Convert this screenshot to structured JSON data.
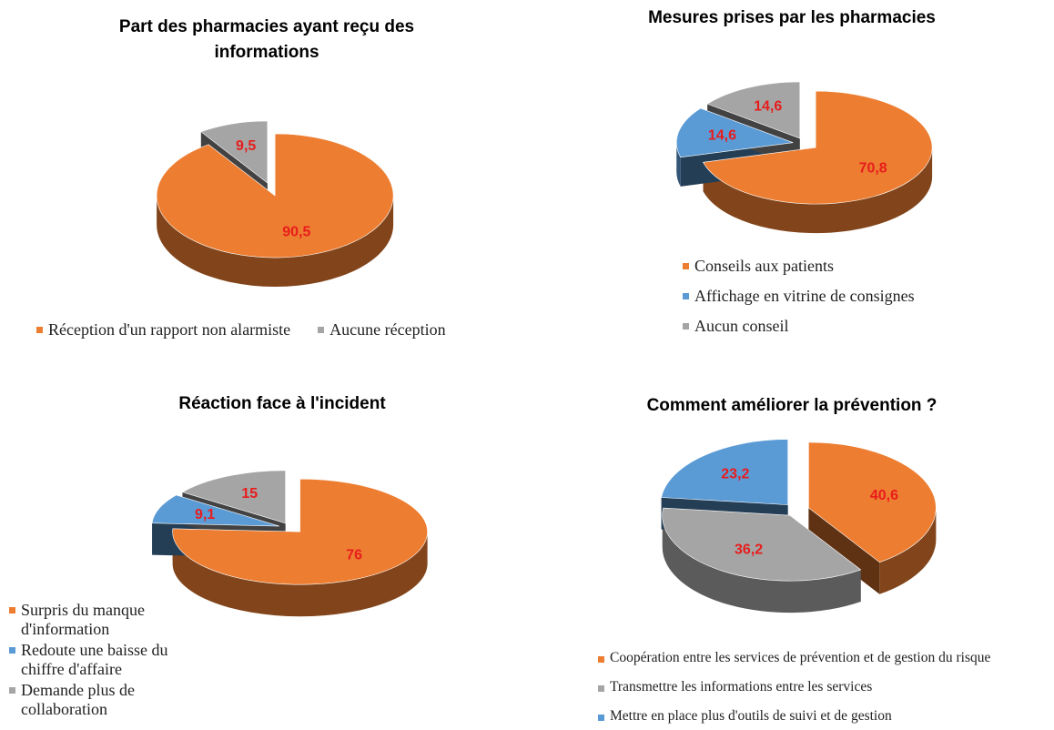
{
  "chart_data": [
    {
      "type": "pie",
      "title": "Part des pharmacies ayant reçu des informations",
      "categories": [
        "Réception d'un rapport non alarmiste",
        "Aucune réception"
      ],
      "values": [
        90.5,
        9.5
      ],
      "value_labels": [
        "90,5",
        "9,5"
      ],
      "colors": [
        "#ed7d31",
        "#a5a5a5"
      ]
    },
    {
      "type": "pie",
      "title": "Mesures prises par les pharmacies",
      "categories": [
        "Conseils aux patients",
        "Affichage en vitrine de consignes",
        "Aucun conseil"
      ],
      "values": [
        70.8,
        14.6,
        14.6
      ],
      "value_labels": [
        "70,8",
        "14,6",
        "14,6"
      ],
      "colors": [
        "#ed7d31",
        "#5b9bd5",
        "#a5a5a5"
      ]
    },
    {
      "type": "pie",
      "title": "Réaction face à l'incident",
      "categories": [
        "Surpris du manque d'information",
        "Redoute une baisse du chiffre d'affaire",
        "Demande plus de collaboration"
      ],
      "values": [
        76,
        9.1,
        15
      ],
      "value_labels": [
        "76",
        "9,1",
        "15"
      ],
      "colors": [
        "#ed7d31",
        "#5b9bd5",
        "#a5a5a5"
      ]
    },
    {
      "type": "pie",
      "title": "Comment améliorer la prévention ?",
      "categories": [
        "Coopération entre les services de prévention et de gestion du risque",
        "Transmettre les informations entre les services",
        "Mettre en place plus d'outils de suivi et de gestion"
      ],
      "values": [
        40.6,
        36.2,
        23.2
      ],
      "value_labels": [
        "40,6",
        "36,2",
        "23,2"
      ],
      "colors": [
        "#ed7d31",
        "#a5a5a5",
        "#5b9bd5"
      ]
    }
  ]
}
